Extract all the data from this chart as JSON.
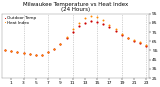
{
  "title": "Milwaukee Temperature vs Heat Index\n(24 Hours)",
  "legend_temp": "Outdoor Temp",
  "legend_hi": "Heat Index",
  "background_color": "#ffffff",
  "plot_bg_color": "#ffffff",
  "text_color": "#000000",
  "grid_color": "#aaaaaa",
  "temp_color": "#cc0000",
  "hi_color": "#ff8800",
  "hours": [
    0,
    1,
    2,
    3,
    4,
    5,
    6,
    7,
    8,
    9,
    10,
    11,
    12,
    13,
    14,
    15,
    16,
    17,
    18,
    19,
    20,
    21,
    22,
    23
  ],
  "temp": [
    55,
    54,
    53,
    52,
    51,
    50,
    50,
    53,
    57,
    62,
    68,
    75,
    81,
    85,
    87,
    86,
    84,
    80,
    76,
    72,
    68,
    65,
    63,
    60
  ],
  "heat_index": [
    55,
    54,
    53,
    52,
    51,
    50,
    50,
    53,
    57,
    62,
    70,
    78,
    85,
    90,
    92,
    91,
    88,
    83,
    78,
    73,
    69,
    66,
    64,
    61
  ],
  "ylim": [
    25,
    95
  ],
  "yticks": [
    25,
    35,
    45,
    55,
    65,
    75,
    85,
    95
  ],
  "xlim": [
    -0.5,
    23.5
  ],
  "xticks": [
    1,
    3,
    5,
    7,
    9,
    11,
    13,
    15,
    17,
    19,
    21,
    23
  ],
  "xtick_labels": [
    "1",
    "3",
    "5",
    "7",
    "9",
    "11",
    "13",
    "15",
    "17",
    "19",
    "21",
    "23"
  ],
  "vgrid_positions": [
    3,
    7,
    11,
    15,
    19,
    23
  ],
  "title_fontsize": 4.0,
  "tick_fontsize": 3.2,
  "legend_fontsize": 3.0,
  "dot_size_temp": 2.5,
  "dot_size_hi": 2.0
}
